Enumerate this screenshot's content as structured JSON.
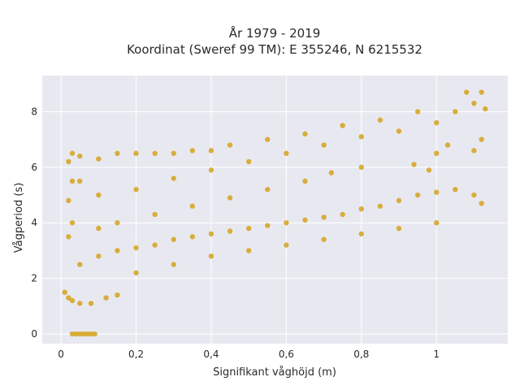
{
  "chart_data": {
    "type": "scatter",
    "title_line1": "År 1979 - 2019",
    "title_line2": "Koordinat (Sweref 99 TM): E 355246, N 6215532",
    "xlabel": "Signifikant våghöjd (m)",
    "ylabel": "Vågperiod (s)",
    "xlim": [
      -0.05,
      1.19
    ],
    "ylim": [
      -0.35,
      9.3
    ],
    "xticks": [
      {
        "value": 0,
        "label": "0"
      },
      {
        "value": 0.2,
        "label": "0,2"
      },
      {
        "value": 0.4,
        "label": "0,4"
      },
      {
        "value": 0.6,
        "label": "0,6"
      },
      {
        "value": 0.8,
        "label": "0,8"
      },
      {
        "value": 1.0,
        "label": "1"
      }
    ],
    "yticks": [
      {
        "value": 0,
        "label": "0"
      },
      {
        "value": 2,
        "label": "2"
      },
      {
        "value": 4,
        "label": "4"
      },
      {
        "value": 6,
        "label": "6"
      },
      {
        "value": 8,
        "label": "8"
      }
    ],
    "grid": true,
    "marker_color": "#d4a21c",
    "plot_bg": "#e8e9f0",
    "series": [
      {
        "points": [
          [
            0.03,
            0
          ],
          [
            0.04,
            0
          ],
          [
            0.05,
            0
          ],
          [
            0.06,
            0
          ],
          [
            0.07,
            0
          ],
          [
            0.08,
            0
          ],
          [
            0.09,
            0
          ],
          [
            0.01,
            1.5
          ],
          [
            0.02,
            1.3
          ],
          [
            0.03,
            1.2
          ],
          [
            0.05,
            1.1
          ],
          [
            0.08,
            1.1
          ],
          [
            0.12,
            1.3
          ],
          [
            0.15,
            1.4
          ],
          [
            0.02,
            3.5
          ],
          [
            0.03,
            4.0
          ],
          [
            0.02,
            4.8
          ],
          [
            0.03,
            5.5
          ],
          [
            0.02,
            6.2
          ],
          [
            0.03,
            6.5
          ],
          [
            0.05,
            6.4
          ],
          [
            0.1,
            6.3
          ],
          [
            0.15,
            6.5
          ],
          [
            0.2,
            6.5
          ],
          [
            0.25,
            6.5
          ],
          [
            0.3,
            6.5
          ],
          [
            0.35,
            6.6
          ],
          [
            0.4,
            6.6
          ],
          [
            0.05,
            2.5
          ],
          [
            0.1,
            2.8
          ],
          [
            0.15,
            3.0
          ],
          [
            0.2,
            3.1
          ],
          [
            0.25,
            3.2
          ],
          [
            0.3,
            3.4
          ],
          [
            0.35,
            3.5
          ],
          [
            0.4,
            3.6
          ],
          [
            0.45,
            3.7
          ],
          [
            0.5,
            3.8
          ],
          [
            0.55,
            3.9
          ],
          [
            0.6,
            4.0
          ],
          [
            0.65,
            4.1
          ],
          [
            0.7,
            4.2
          ],
          [
            0.75,
            4.3
          ],
          [
            0.8,
            4.5
          ],
          [
            0.85,
            4.6
          ],
          [
            0.9,
            4.8
          ],
          [
            0.95,
            5.0
          ],
          [
            1.0,
            5.1
          ],
          [
            1.05,
            5.2
          ],
          [
            1.1,
            5.0
          ],
          [
            1.12,
            4.7
          ],
          [
            0.2,
            2.2
          ],
          [
            0.3,
            2.5
          ],
          [
            0.4,
            2.8
          ],
          [
            0.5,
            3.0
          ],
          [
            0.6,
            3.2
          ],
          [
            0.7,
            3.4
          ],
          [
            0.8,
            3.6
          ],
          [
            0.9,
            3.8
          ],
          [
            1.0,
            4.0
          ],
          [
            0.2,
            5.2
          ],
          [
            0.3,
            5.6
          ],
          [
            0.4,
            5.9
          ],
          [
            0.5,
            6.2
          ],
          [
            0.6,
            6.5
          ],
          [
            0.7,
            6.8
          ],
          [
            0.8,
            7.1
          ],
          [
            0.9,
            7.3
          ],
          [
            1.0,
            7.6
          ],
          [
            0.45,
            6.8
          ],
          [
            0.55,
            7.0
          ],
          [
            0.65,
            7.2
          ],
          [
            0.75,
            7.5
          ],
          [
            0.85,
            7.7
          ],
          [
            0.95,
            8.0
          ],
          [
            1.05,
            8.0
          ],
          [
            1.08,
            8.7
          ],
          [
            1.12,
            8.7
          ],
          [
            1.1,
            8.3
          ],
          [
            1.13,
            8.1
          ],
          [
            1.1,
            6.6
          ],
          [
            1.12,
            7.0
          ],
          [
            1.03,
            6.8
          ],
          [
            0.94,
            6.1
          ],
          [
            0.98,
            5.9
          ],
          [
            1.0,
            6.5
          ],
          [
            0.72,
            5.8
          ],
          [
            0.8,
            6.0
          ],
          [
            0.65,
            5.5
          ],
          [
            0.55,
            5.2
          ],
          [
            0.45,
            4.9
          ],
          [
            0.35,
            4.6
          ],
          [
            0.25,
            4.3
          ],
          [
            0.15,
            4.0
          ],
          [
            0.1,
            3.8
          ],
          [
            0.1,
            5.0
          ],
          [
            0.05,
            5.5
          ]
        ]
      }
    ]
  }
}
